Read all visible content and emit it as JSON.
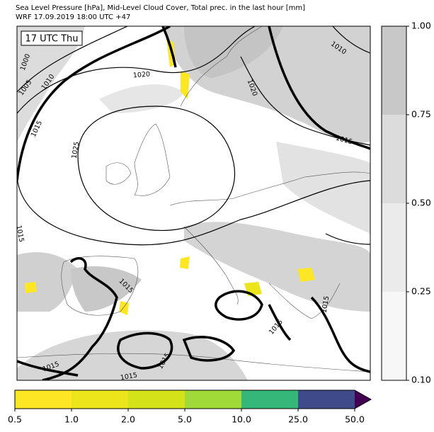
{
  "header": {
    "title": [
      "Sea Level Pressure [hPa], Mid-Level Cloud Cover, Total prec. in the last hour [mm]",
      "WRF 17.09.2019 18:00 UTC +47"
    ]
  },
  "map": {
    "time_label": "17 UTC Thu",
    "contour_labels": [
      "1000",
      "1005",
      "1010",
      "1015",
      "1020",
      "1025",
      "1020",
      "1010",
      "1015",
      "1015",
      "1015",
      "1015",
      "1015",
      "1015",
      "1015",
      "1015"
    ]
  },
  "cloud_colorbar": {
    "ticks": [
      "1.00",
      "0.75",
      "0.50",
      "0.25",
      "0.10"
    ]
  },
  "precip_colorbar": {
    "ticks": [
      "0.5",
      "1.0",
      "2.0",
      "5.0",
      "10.0",
      "25.0",
      "50.0"
    ]
  }
}
